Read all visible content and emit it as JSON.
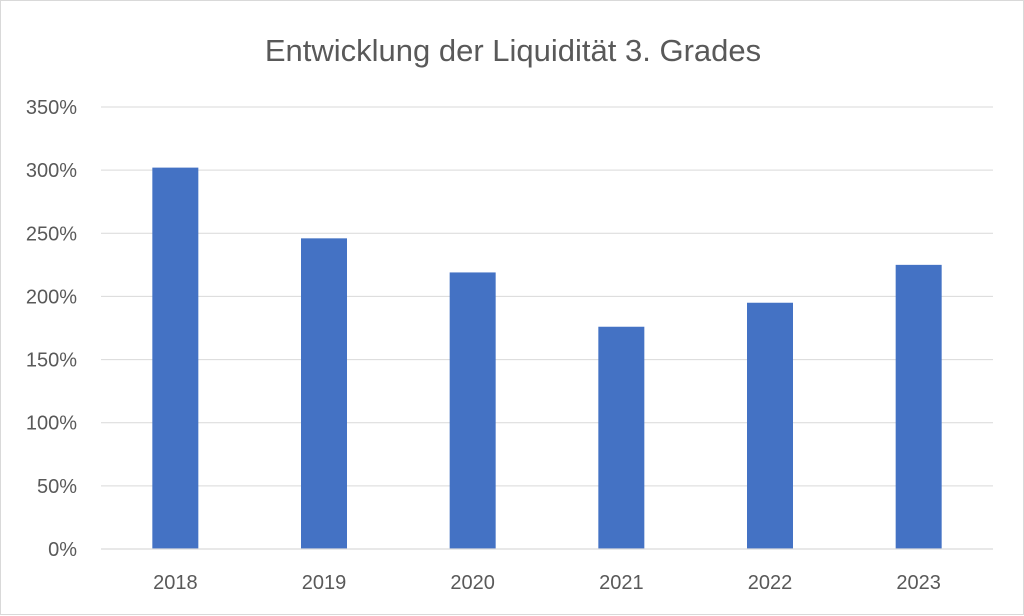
{
  "chart_data": {
    "type": "bar",
    "title": "Entwicklung der Liquidität 3. Grades",
    "xlabel": "",
    "ylabel": "",
    "categories": [
      "2018",
      "2019",
      "2020",
      "2021",
      "2022",
      "2023"
    ],
    "values": [
      302,
      246,
      219,
      176,
      195,
      225
    ],
    "unit": "%",
    "ylim": [
      0,
      350
    ],
    "yticks": [
      0,
      50,
      100,
      150,
      200,
      250,
      300,
      350
    ],
    "ytick_labels": [
      "0%",
      "50%",
      "100%",
      "150%",
      "200%",
      "250%",
      "300%",
      "350%"
    ],
    "grid": true,
    "legend": "none",
    "bar_color": "#4472C4"
  }
}
